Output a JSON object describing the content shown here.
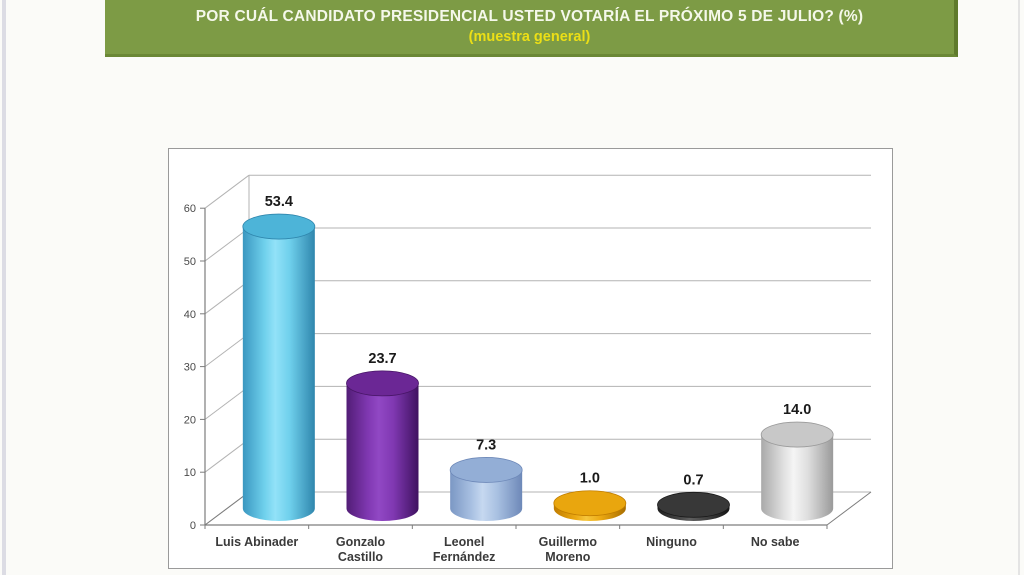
{
  "banner": {
    "title": "POR CUÁL CANDIDATO PRESIDENCIAL USTED VOTARÍA EL PRÓXIMO 5 DE JULIO? (%)",
    "subtitle": "(muestra general)",
    "bg_color": "#7d9b45",
    "title_color": "#f5f8ea",
    "subtitle_color": "#ecdf16"
  },
  "chart_data": {
    "type": "bar",
    "style": "3d-cylinder",
    "title": "",
    "xlabel": "",
    "ylabel": "",
    "categories": [
      "Luis Abinader",
      "Gonzalo Castillo",
      "Leonel Fernández",
      "Guillermo Moreno",
      "Ninguno",
      "No sabe"
    ],
    "category_lines": [
      [
        "Luis Abinader"
      ],
      [
        "Gonzalo",
        "Castillo"
      ],
      [
        "Leonel",
        "Fernández"
      ],
      [
        "Guillermo",
        "Moreno"
      ],
      [
        "Ninguno"
      ],
      [
        "No sabe"
      ]
    ],
    "values": [
      53.4,
      23.7,
      7.3,
      1.0,
      0.7,
      14.0
    ],
    "value_labels": [
      "53.4",
      "23.7",
      "7.3",
      "1.0",
      "0.7",
      "14.0"
    ],
    "ylim": [
      0,
      60
    ],
    "y_ticks": [
      0,
      10,
      20,
      30,
      40,
      50,
      60
    ],
    "grid": true,
    "legend": false,
    "bar_colors": [
      {
        "name": "cyan",
        "dark": "#3a97c0",
        "mid": "#6fd0ec",
        "light": "#92e2f8",
        "edge": "#2f86ad",
        "top": "#4db4d8",
        "top_edge": "#2f86ad"
      },
      {
        "name": "purple",
        "dark": "#521d76",
        "mid": "#8038b2",
        "light": "#9148c4",
        "edge": "#3f1260",
        "top": "#6b2795",
        "top_edge": "#471566"
      },
      {
        "name": "periwinkle",
        "dark": "#7b97c4",
        "mid": "#a9c1e2",
        "light": "#c6d8f0",
        "edge": "#6d88b8",
        "top": "#93aed6",
        "top_edge": "#6d88b8"
      },
      {
        "name": "gold",
        "dark": "#c07d00",
        "mid": "#eca912",
        "light": "#f6c63c",
        "edge": "#a96e00",
        "top": "#e9a60e",
        "top_edge": "#c07d00"
      },
      {
        "name": "charcoal",
        "dark": "#1f1f1f",
        "mid": "#454545",
        "light": "#5f5f5f",
        "edge": "#141414",
        "top": "#383838",
        "top_edge": "#1a1a1a"
      },
      {
        "name": "silver",
        "dark": "#a9a9a9",
        "mid": "#dedede",
        "light": "#f5f5f5",
        "edge": "#9a9a9a",
        "top": "#c8c8c8",
        "top_edge": "#9a9a9a"
      }
    ],
    "axis_color": "#7d7d7d",
    "grid_color": "#b3b3b3",
    "value_label_color": "#1a1a1a",
    "tick_label_color": "#4a4a4a",
    "category_label_color": "#3a3a3a"
  }
}
